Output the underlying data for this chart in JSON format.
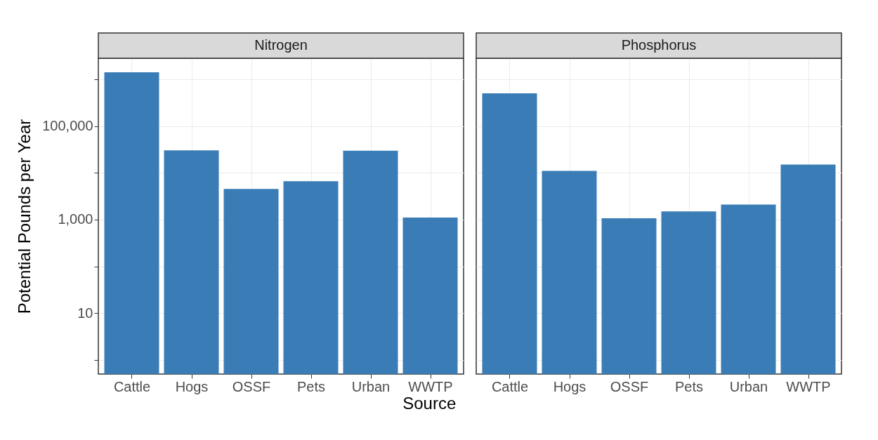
{
  "chart_data": [
    {
      "type": "bar",
      "title": "Nitrogen",
      "ylabel": "Potential Pounds per Year",
      "xlabel": "Source",
      "categories": [
        "Cattle",
        "Hogs",
        "OSSF",
        "Pets",
        "Urban",
        "WWTP"
      ],
      "values": [
        1400000,
        30000,
        4500,
        6600,
        29500,
        1100
      ],
      "color": "#3a7db6",
      "log": "y",
      "ylim": [
        0.5,
        2800000
      ],
      "yticks": [
        {
          "value": 1,
          "label": null
        },
        10,
        {
          "value": 100,
          "label": null
        },
        {
          "value": 1000,
          "label": "1,000"
        },
        {
          "value": 10000,
          "label": null
        },
        {
          "value": 100000,
          "label": "100,000"
        },
        {
          "value": 1000000,
          "label": null
        }
      ],
      "grid": true
    },
    {
      "type": "bar",
      "title": "Phosphorus",
      "categories": [
        "Cattle",
        "Hogs",
        "OSSF",
        "Pets",
        "Urban",
        "WWTP"
      ],
      "values": [
        500000,
        11000,
        1070,
        1500,
        2100,
        15000
      ],
      "color": "#3a7db6",
      "log": "y",
      "ylim": [
        0.5,
        2800000
      ],
      "yticks": [
        1,
        10,
        100,
        1000,
        10000,
        100000,
        1000000
      ],
      "grid": true,
      "tick_labels": "x"
    }
  ]
}
